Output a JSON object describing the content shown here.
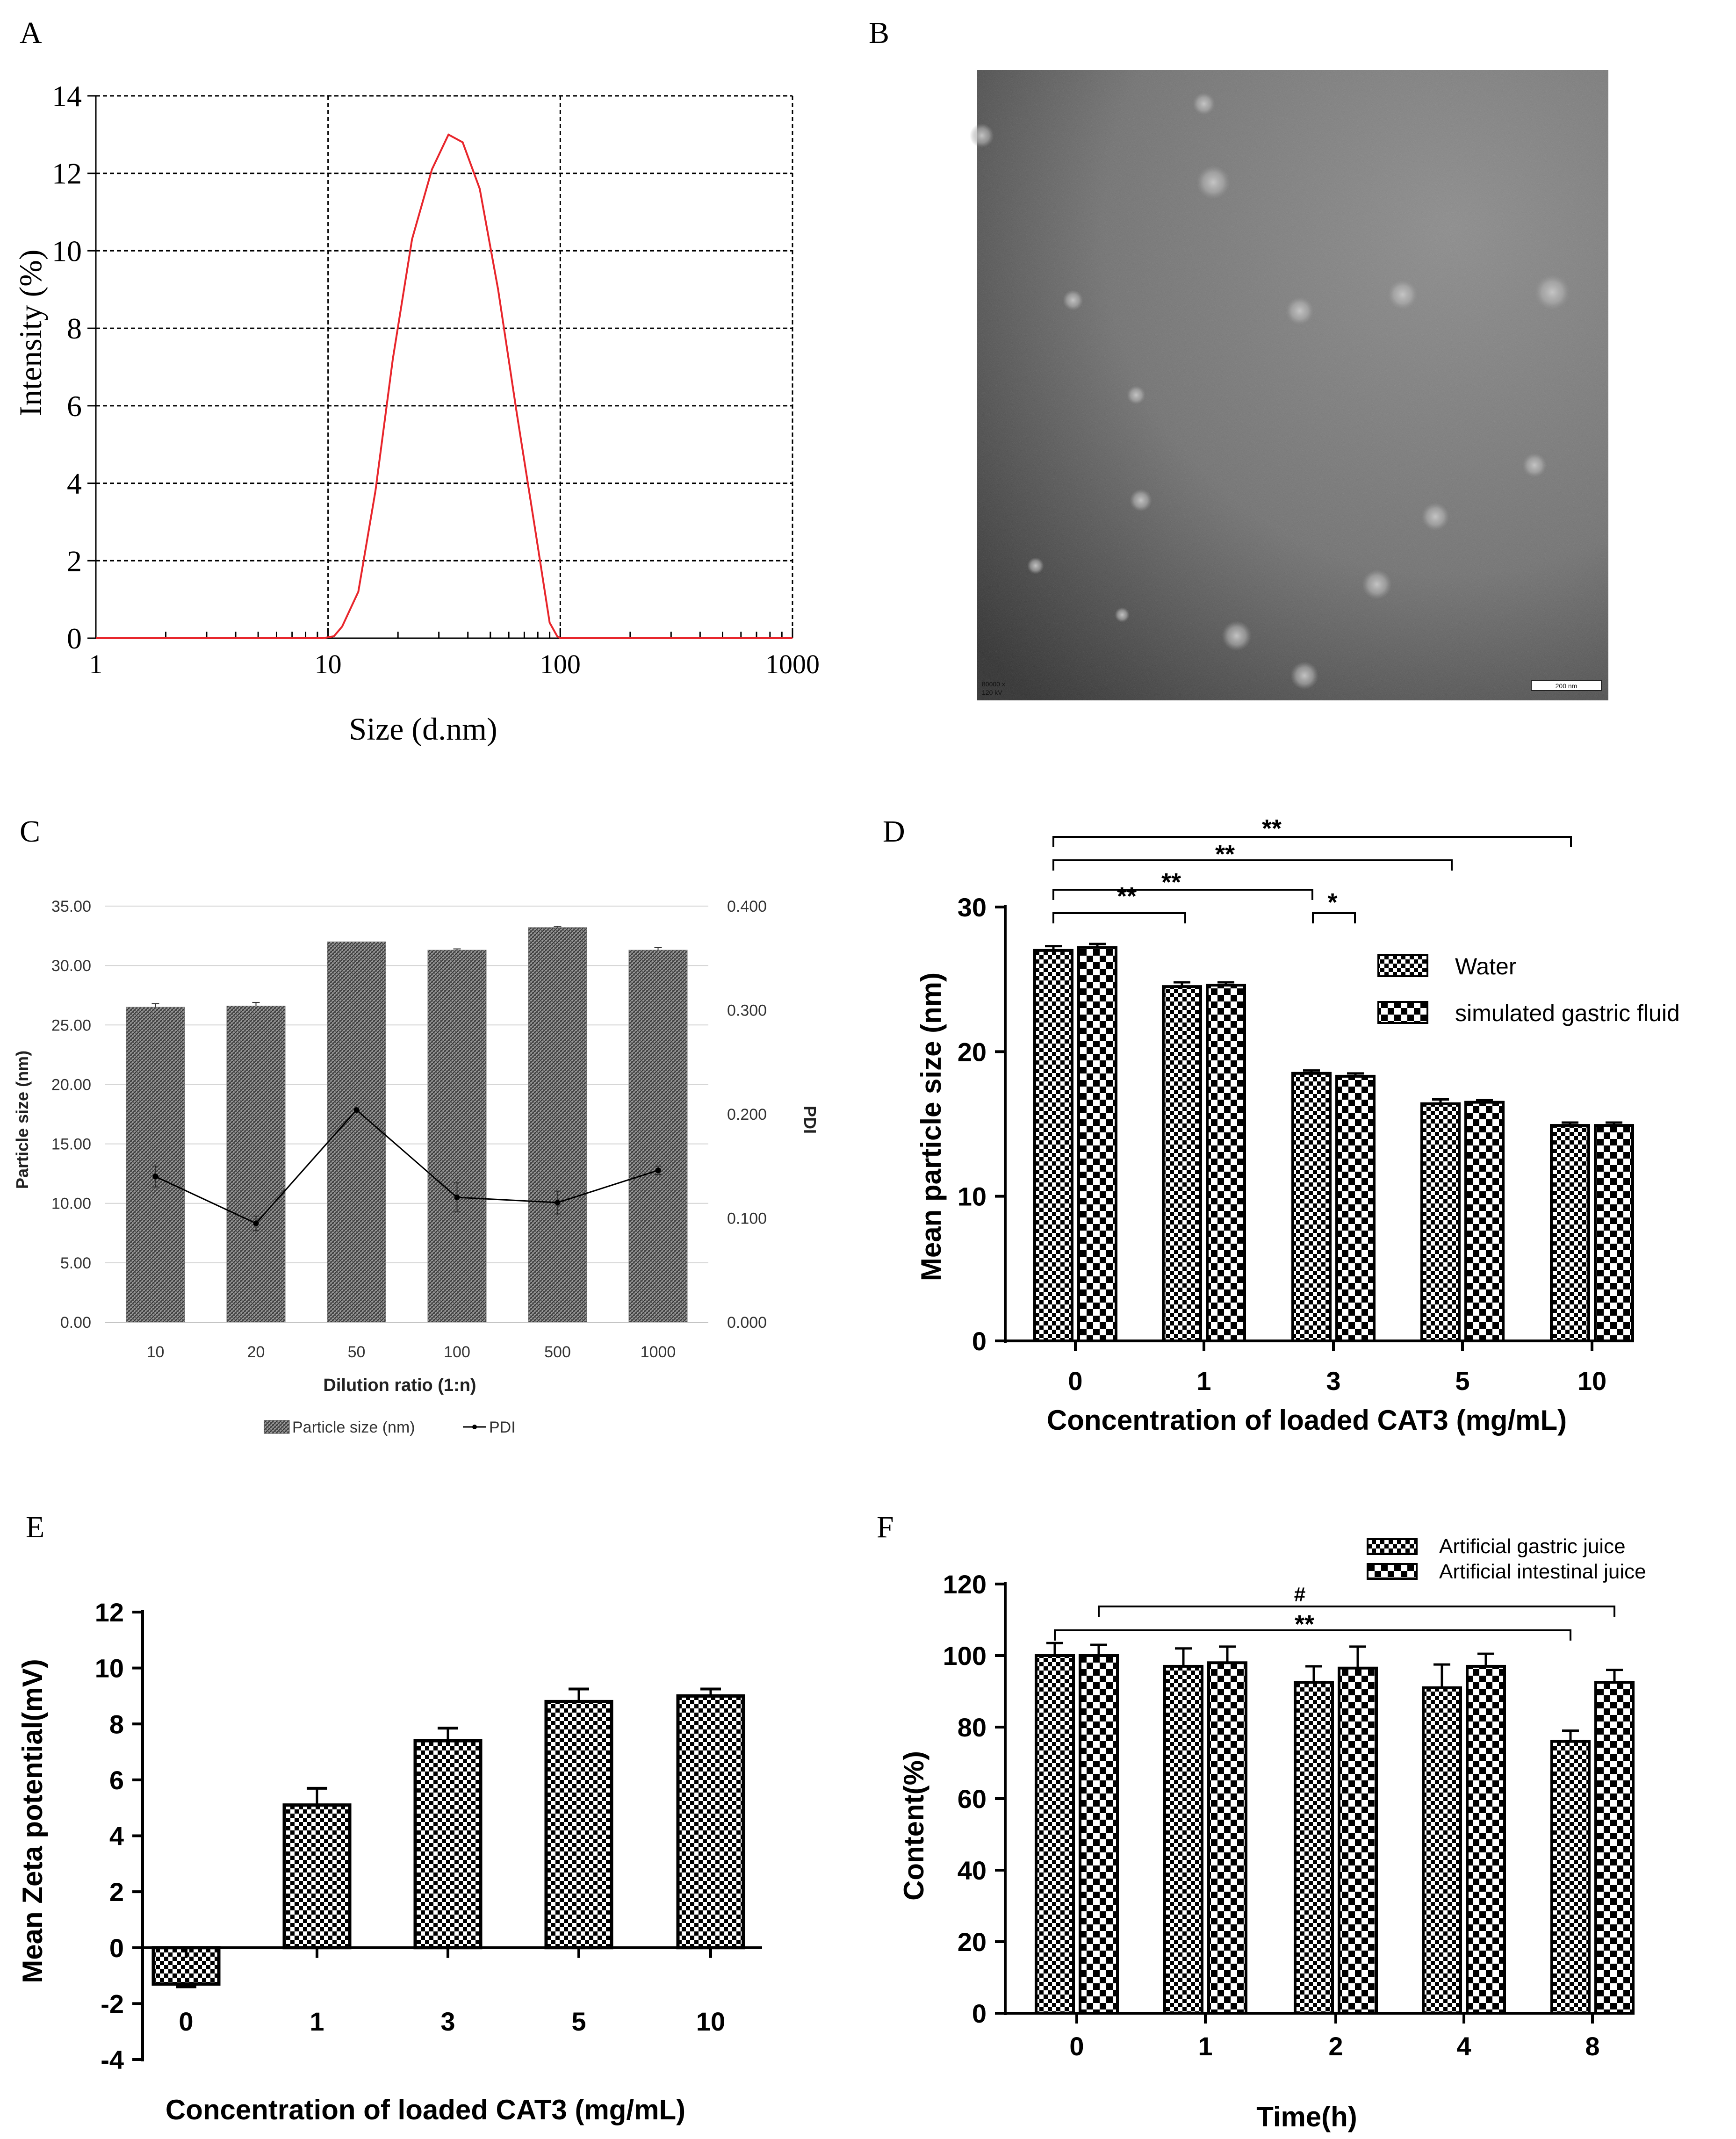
{
  "panels": {
    "A": {
      "letter": "A"
    },
    "B": {
      "letter": "B"
    },
    "C": {
      "letter": "C"
    },
    "D": {
      "letter": "D"
    },
    "E": {
      "letter": "E"
    },
    "F": {
      "letter": "F"
    }
  },
  "colors": {
    "curve": "#e8262c",
    "bar": "#555555",
    "em_bg": "#6e6e6e"
  },
  "chart_data": [
    {
      "panel": "A",
      "type": "line",
      "title": "",
      "xlabel": "Size (d.nm)",
      "ylabel": "Intensity (%)",
      "xscale": "log",
      "xlim": [
        1,
        1000
      ],
      "ylim": [
        0,
        14
      ],
      "grid": true,
      "xticks": [
        1,
        10,
        100,
        1000
      ],
      "xtick_labels": [
        "1",
        "10",
        "100",
        "1000"
      ],
      "yticks": [
        0,
        2,
        4,
        6,
        8,
        10,
        12,
        14
      ],
      "ytick_labels": [
        "0",
        "2",
        "4",
        "6",
        "8",
        "10",
        "12",
        "14"
      ],
      "series": [
        {
          "name": "intensity",
          "x": [
            1,
            9.5,
            10.6,
            11.5,
            13.5,
            16,
            19,
            23,
            28,
            33,
            38,
            45,
            54,
            65,
            78,
            90,
            97,
            100,
            1000
          ],
          "y": [
            0,
            0,
            0.05,
            0.3,
            1.2,
            3.8,
            7.2,
            10.3,
            12.1,
            13.0,
            12.8,
            11.6,
            9.0,
            5.8,
            2.8,
            0.4,
            0.05,
            0,
            0
          ]
        }
      ]
    },
    {
      "panel": "B",
      "type": "image",
      "caption_lines": [
        "80000 x",
        "120 kV"
      ],
      "scale_bar_label": "200 nm"
    },
    {
      "panel": "C",
      "type": "bar",
      "xlabel": "Dilution ratio (1:n)",
      "ylabel": "Particle size (nm)",
      "y2label": "PDI",
      "categories": [
        "10",
        "20",
        "50",
        "100",
        "500",
        "1000"
      ],
      "ylim": [
        0,
        35
      ],
      "yticks": [
        0,
        5,
        10,
        15,
        20,
        25,
        30,
        35
      ],
      "ytick_labels": [
        "0.00",
        "5.00",
        "10.00",
        "15.00",
        "20.00",
        "25.00",
        "30.00",
        "35.00"
      ],
      "y2lim": [
        0,
        0.4
      ],
      "y2ticks": [
        0,
        0.1,
        0.2,
        0.3,
        0.4
      ],
      "y2tick_labels": [
        "0.000",
        "0.100",
        "0.200",
        "0.300",
        "0.400"
      ],
      "series": [
        {
          "name": "Particle size (nm)",
          "kind": "bar",
          "values": [
            26.5,
            26.6,
            32.0,
            31.3,
            33.2,
            31.3
          ],
          "errors": [
            0.3,
            0.3,
            0.0,
            0.1,
            0.1,
            0.2
          ]
        },
        {
          "name": "PDI",
          "kind": "line",
          "axis": "right",
          "values": [
            0.14,
            0.095,
            0.204,
            0.12,
            0.115,
            0.146
          ],
          "errors": [
            0.01,
            0.007,
            0.0,
            0.014,
            0.011,
            0.004
          ]
        }
      ],
      "legend": [
        "Particle size (nm)",
        "PDI"
      ]
    },
    {
      "panel": "D",
      "type": "bar",
      "xlabel": "Concentration of loaded CAT3 (mg/mL)",
      "ylabel": "Mean particle size (nm)",
      "categories": [
        "0",
        "1",
        "3",
        "5",
        "10"
      ],
      "ylim": [
        0,
        30
      ],
      "yticks": [
        0,
        10,
        20,
        30
      ],
      "ytick_labels": [
        "0",
        "10",
        "20",
        "30"
      ],
      "series": [
        {
          "name": "Water",
          "values": [
            27.0,
            24.5,
            18.5,
            16.4,
            14.9
          ],
          "errors": [
            0.2,
            0.2,
            0.1,
            0.2,
            0.1
          ]
        },
        {
          "name": "simulated gastric fluid",
          "values": [
            27.2,
            24.6,
            18.3,
            16.5,
            14.9
          ],
          "errors": [
            0.15,
            0.1,
            0.1,
            0.05,
            0.1
          ]
        }
      ],
      "legend": [
        "Water",
        "simulated gastric fluid"
      ],
      "annotations": [
        {
          "text": "**",
          "from": "0",
          "to": "1"
        },
        {
          "text": "**",
          "from": "0",
          "to": "3"
        },
        {
          "text": "*",
          "from": "3a",
          "to": "3b"
        },
        {
          "text": "**",
          "from": "0",
          "to": "5"
        },
        {
          "text": "**",
          "from": "0",
          "to": "10"
        }
      ]
    },
    {
      "panel": "E",
      "type": "bar",
      "xlabel": "Concentration of loaded CAT3 (mg/mL)",
      "ylabel": "Mean Zeta potential(mV)",
      "categories": [
        "0",
        "1",
        "3",
        "5",
        "10"
      ],
      "ylim": [
        -4,
        12
      ],
      "yticks": [
        -4,
        -2,
        0,
        2,
        4,
        6,
        8,
        10,
        12
      ],
      "ytick_labels": [
        "-4",
        "-2",
        "0",
        "2",
        "4",
        "6",
        "8",
        "10",
        "12"
      ],
      "series": [
        {
          "name": "zeta",
          "values": [
            -1.3,
            5.1,
            7.4,
            8.8,
            9.0
          ],
          "errors": [
            0.1,
            0.6,
            0.45,
            0.45,
            0.25
          ]
        }
      ]
    },
    {
      "panel": "F",
      "type": "bar",
      "xlabel": "Time(h)",
      "ylabel": "Content(%)",
      "categories": [
        "0",
        "1",
        "2",
        "4",
        "8"
      ],
      "ylim": [
        0,
        120
      ],
      "yticks": [
        0,
        20,
        40,
        60,
        80,
        100,
        120
      ],
      "ytick_labels": [
        "0",
        "20",
        "40",
        "60",
        "80",
        "100",
        "120"
      ],
      "series": [
        {
          "name": "Artificial gastric juice",
          "values": [
            100,
            97,
            92.5,
            91,
            76
          ],
          "errors": [
            3.5,
            5,
            4.5,
            6.5,
            3
          ]
        },
        {
          "name": "Artificial intestinal juice",
          "values": [
            100,
            98,
            96.5,
            97,
            92.5
          ],
          "errors": [
            3,
            4.5,
            6,
            3.5,
            3.5
          ]
        }
      ],
      "legend": [
        "Artificial gastric juice",
        "Artificial intestinal juice"
      ],
      "annotations": [
        {
          "text": "#",
          "from": "0b",
          "to": "8b"
        },
        {
          "text": "**",
          "from": "0a",
          "to": "8a"
        }
      ]
    }
  ]
}
